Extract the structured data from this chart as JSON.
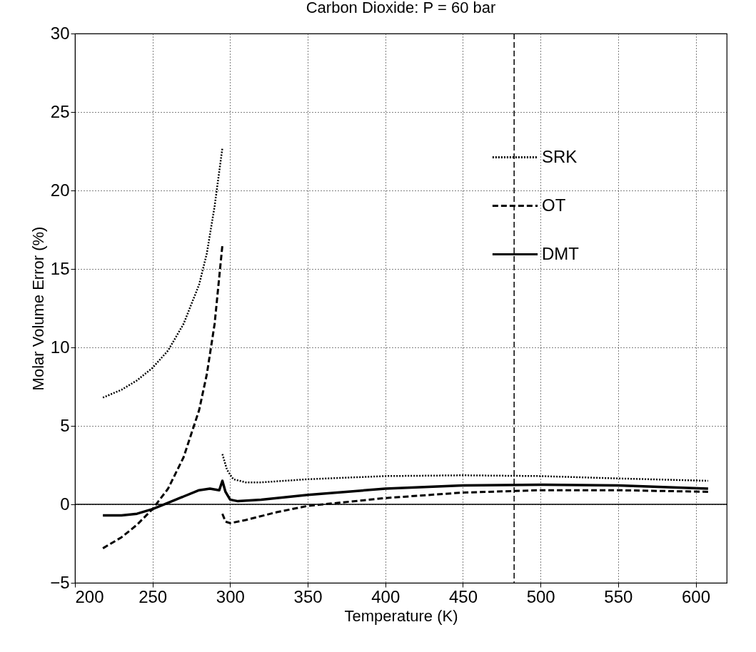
{
  "chart_data": {
    "type": "line",
    "title": "Carbon Dioxide:  P = 60 bar",
    "xlabel": "Temperature (K)",
    "ylabel": "Molar Volume Error (%)",
    "xlim": [
      200,
      620
    ],
    "xticks": [
      200,
      250,
      300,
      350,
      400,
      450,
      500,
      550,
      600
    ],
    "ylim": [
      -5,
      30
    ],
    "yticks": [
      -5,
      0,
      5,
      10,
      15,
      20,
      25,
      30
    ],
    "grid": true,
    "legend": "top right",
    "series": [
      {
        "name": "SRK",
        "color": "#000000",
        "line_style": "dotted",
        "x": [
          218,
          230,
          240,
          250,
          260,
          270,
          280,
          285,
          290,
          295,
          null,
          295,
          298,
          302,
          310,
          320,
          350,
          400,
          450,
          500,
          550,
          608
        ],
        "values": [
          6.8,
          7.3,
          7.9,
          8.7,
          9.8,
          11.5,
          14,
          16,
          19,
          22.7,
          null,
          3.2,
          2.2,
          1.6,
          1.4,
          1.4,
          1.6,
          1.8,
          1.85,
          1.8,
          1.65,
          1.5
        ]
      },
      {
        "name": "OT",
        "color": "#000000",
        "line_style": "dashed",
        "x": [
          218,
          230,
          240,
          250,
          260,
          270,
          280,
          285,
          290,
          295,
          null,
          295,
          297,
          300,
          310,
          330,
          350,
          400,
          450,
          500,
          550,
          608
        ],
        "values": [
          -2.8,
          -2.1,
          -1.3,
          -0.3,
          1.0,
          3.0,
          6.0,
          8.3,
          11.5,
          16.5,
          null,
          -0.6,
          -1.1,
          -1.2,
          -1.0,
          -0.5,
          -0.1,
          0.4,
          0.75,
          0.9,
          0.9,
          0.8
        ]
      },
      {
        "name": "DMT",
        "color": "#000000",
        "line_style": "solid",
        "x": [
          218,
          230,
          240,
          250,
          260,
          270,
          280,
          287,
          293,
          295,
          297,
          300,
          305,
          320,
          350,
          400,
          450,
          500,
          550,
          608
        ],
        "values": [
          -0.7,
          -0.7,
          -0.6,
          -0.3,
          0.1,
          0.5,
          0.9,
          1.0,
          0.9,
          1.5,
          0.8,
          0.3,
          0.2,
          0.3,
          0.6,
          1.0,
          1.2,
          1.25,
          1.2,
          1.0
        ]
      }
    ],
    "ref_lines": [
      {
        "axis": "y",
        "value": 0,
        "line_style": "solid",
        "color": "#000000"
      },
      {
        "axis": "x",
        "value": 483,
        "line_style": "dashed",
        "color": "#000000"
      }
    ]
  }
}
